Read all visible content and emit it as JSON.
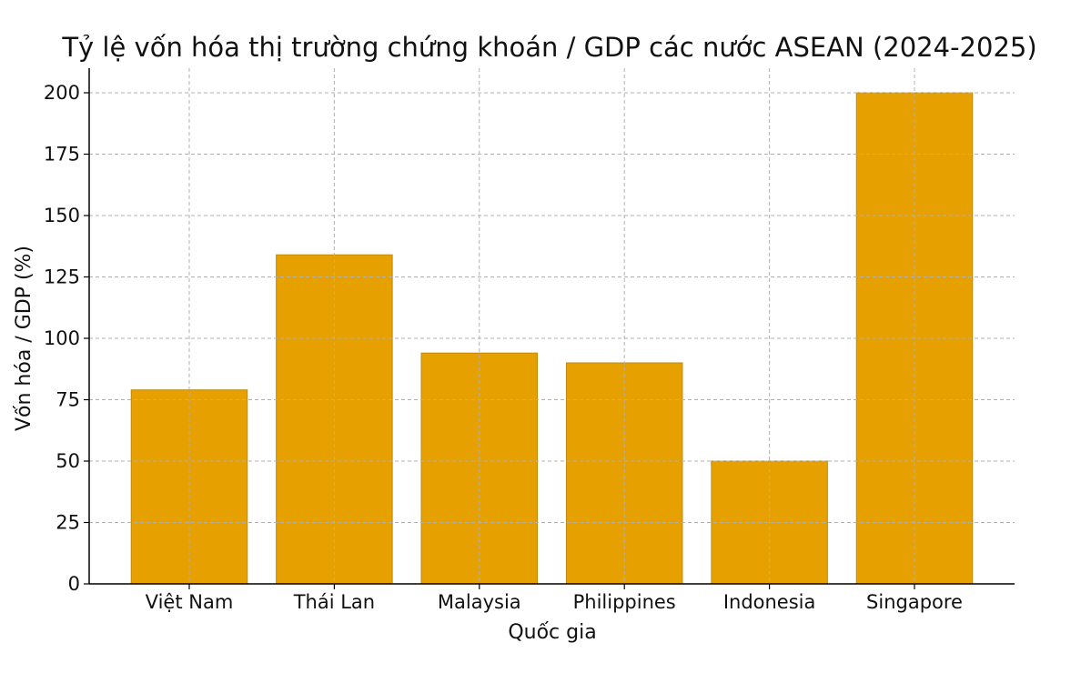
{
  "chart_data": {
    "type": "bar",
    "title": "Tỷ lệ vốn hóa thị trường chứng khoán / GDP các nước ASEAN (2024-2025)",
    "xlabel": "Quốc gia",
    "ylabel": "Vốn hóa / GDP (%)",
    "categories": [
      "Việt Nam",
      "Thái Lan",
      "Malaysia",
      "Philippines",
      "Indonesia",
      "Singapore"
    ],
    "values": [
      79,
      134,
      94,
      90,
      50,
      200
    ],
    "ylim": [
      0,
      210
    ],
    "yticks": [
      0,
      25,
      50,
      75,
      100,
      125,
      150,
      175,
      200
    ],
    "grid": true,
    "bar_color": "#E6A000",
    "bar_edge_color": "#C08A10"
  }
}
